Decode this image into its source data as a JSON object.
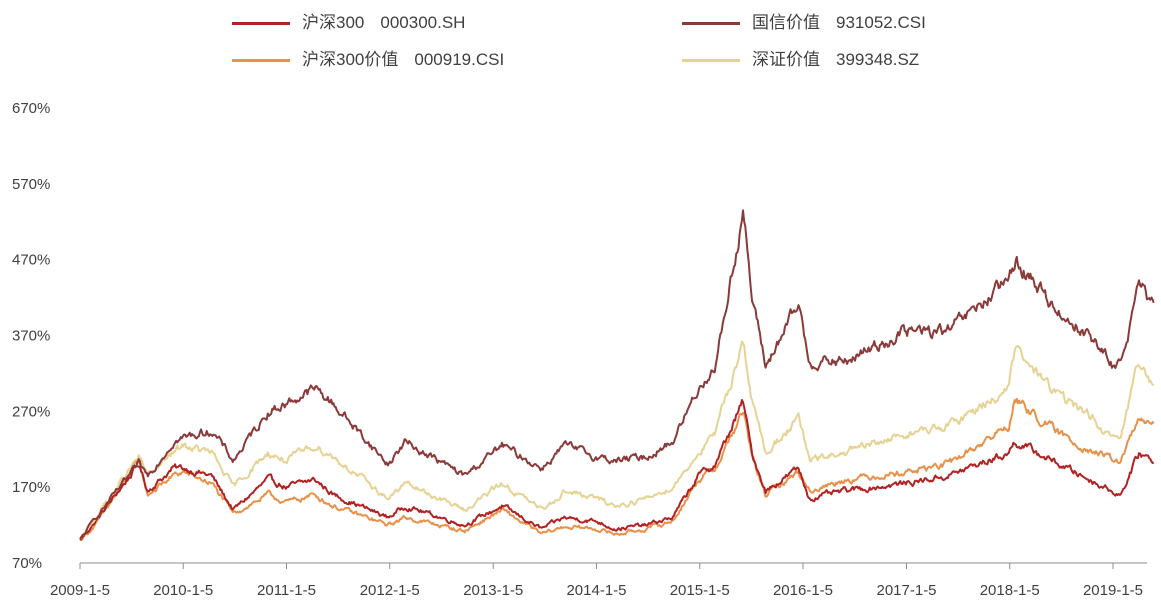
{
  "chart_data": {
    "type": "line",
    "title": "",
    "xlabel": "",
    "ylabel": "",
    "x_start": "2009-01-05",
    "x_end": "2019-05-31",
    "x_ticks": [
      "2009-1-5",
      "2010-1-5",
      "2011-1-5",
      "2012-1-5",
      "2013-1-5",
      "2014-1-5",
      "2015-1-5",
      "2016-1-5",
      "2017-1-5",
      "2018-1-5",
      "2019-1-5"
    ],
    "y_ticks": [
      "70%",
      "170%",
      "270%",
      "370%",
      "470%",
      "570%",
      "670%"
    ],
    "ylim": [
      70,
      670
    ],
    "grid": false,
    "legend_position": "top",
    "series": [
      {
        "name": "沪深300",
        "code": "000300.SH",
        "color": "#B22222",
        "points": [
          [
            "2009-01-05",
            100
          ],
          [
            "2009-03-01",
            125
          ],
          [
            "2009-08-01",
            200
          ],
          [
            "2009-09-01",
            165
          ],
          [
            "2009-12-01",
            195
          ],
          [
            "2010-01-05",
            195
          ],
          [
            "2010-04-15",
            185
          ],
          [
            "2010-07-01",
            140
          ],
          [
            "2010-11-01",
            180
          ],
          [
            "2011-01-05",
            170
          ],
          [
            "2011-04-15",
            180
          ],
          [
            "2011-06-20",
            160
          ],
          [
            "2011-12-30",
            130
          ],
          [
            "2012-03-01",
            145
          ],
          [
            "2012-09-25",
            120
          ],
          [
            "2013-02-05",
            145
          ],
          [
            "2013-06-25",
            115
          ],
          [
            "2013-09-15",
            130
          ],
          [
            "2014-01-05",
            125
          ],
          [
            "2014-03-15",
            115
          ],
          [
            "2014-07-01",
            120
          ],
          [
            "2014-10-01",
            130
          ],
          [
            "2014-12-31",
            185
          ],
          [
            "2015-03-01",
            200
          ],
          [
            "2015-06-08",
            283
          ],
          [
            "2015-07-08",
            215
          ],
          [
            "2015-08-26",
            165
          ],
          [
            "2015-12-20",
            195
          ],
          [
            "2016-01-28",
            155
          ],
          [
            "2016-06-01",
            165
          ],
          [
            "2016-12-31",
            175
          ],
          [
            "2017-06-01",
            185
          ],
          [
            "2017-12-31",
            215
          ],
          [
            "2018-01-24",
            230
          ],
          [
            "2018-06-30",
            200
          ],
          [
            "2018-10-15",
            180
          ],
          [
            "2019-01-03",
            165
          ],
          [
            "2019-02-01",
            160
          ],
          [
            "2019-04-08",
            215
          ],
          [
            "2019-05-31",
            205
          ]
        ]
      },
      {
        "name": "沪深300价值",
        "code": "000919.CSI",
        "color": "#E8914A",
        "points": [
          [
            "2009-01-05",
            100
          ],
          [
            "2009-03-01",
            120
          ],
          [
            "2009-08-01",
            205
          ],
          [
            "2009-09-01",
            160
          ],
          [
            "2009-12-01",
            185
          ],
          [
            "2010-01-05",
            190
          ],
          [
            "2010-04-15",
            175
          ],
          [
            "2010-07-01",
            135
          ],
          [
            "2010-11-01",
            160
          ],
          [
            "2011-01-05",
            150
          ],
          [
            "2011-04-15",
            160
          ],
          [
            "2011-06-20",
            145
          ],
          [
            "2011-12-30",
            120
          ],
          [
            "2012-03-01",
            130
          ],
          [
            "2012-09-25",
            112
          ],
          [
            "2013-02-05",
            140
          ],
          [
            "2013-06-25",
            108
          ],
          [
            "2013-09-15",
            118
          ],
          [
            "2014-01-05",
            115
          ],
          [
            "2014-03-15",
            108
          ],
          [
            "2014-07-01",
            115
          ],
          [
            "2014-10-01",
            125
          ],
          [
            "2014-12-31",
            180
          ],
          [
            "2015-03-01",
            195
          ],
          [
            "2015-06-08",
            270
          ],
          [
            "2015-07-08",
            210
          ],
          [
            "2015-08-26",
            160
          ],
          [
            "2015-12-20",
            190
          ],
          [
            "2016-01-28",
            165
          ],
          [
            "2016-06-01",
            180
          ],
          [
            "2016-12-31",
            190
          ],
          [
            "2017-06-01",
            200
          ],
          [
            "2017-12-31",
            250
          ],
          [
            "2018-01-24",
            285
          ],
          [
            "2018-06-30",
            240
          ],
          [
            "2018-10-15",
            220
          ],
          [
            "2019-01-03",
            205
          ],
          [
            "2019-02-01",
            205
          ],
          [
            "2019-04-08",
            260
          ],
          [
            "2019-05-31",
            250
          ]
        ]
      },
      {
        "name": "国信价值",
        "code": "931052.CSI",
        "color": "#8B3A3A",
        "points": [
          [
            "2009-01-05",
            100
          ],
          [
            "2009-03-01",
            130
          ],
          [
            "2009-08-01",
            200
          ],
          [
            "2009-09-01",
            185
          ],
          [
            "2009-12-01",
            230
          ],
          [
            "2010-01-05",
            235
          ],
          [
            "2010-04-15",
            245
          ],
          [
            "2010-07-01",
            205
          ],
          [
            "2010-11-01",
            270
          ],
          [
            "2011-01-05",
            280
          ],
          [
            "2011-04-15",
            300
          ],
          [
            "2011-06-20",
            280
          ],
          [
            "2011-12-30",
            200
          ],
          [
            "2012-03-01",
            230
          ],
          [
            "2012-09-25",
            185
          ],
          [
            "2013-02-05",
            225
          ],
          [
            "2013-06-25",
            195
          ],
          [
            "2013-09-15",
            225
          ],
          [
            "2014-01-05",
            210
          ],
          [
            "2014-03-15",
            205
          ],
          [
            "2014-07-01",
            210
          ],
          [
            "2014-10-01",
            230
          ],
          [
            "2014-12-31",
            300
          ],
          [
            "2015-03-01",
            330
          ],
          [
            "2015-06-08",
            535
          ],
          [
            "2015-07-08",
            420
          ],
          [
            "2015-08-26",
            330
          ],
          [
            "2015-12-20",
            410
          ],
          [
            "2016-01-28",
            335
          ],
          [
            "2016-06-01",
            335
          ],
          [
            "2016-12-31",
            375
          ],
          [
            "2017-06-01",
            375
          ],
          [
            "2017-12-31",
            440
          ],
          [
            "2018-01-24",
            470
          ],
          [
            "2018-06-30",
            400
          ],
          [
            "2018-10-15",
            370
          ],
          [
            "2019-01-03",
            330
          ],
          [
            "2019-02-01",
            335
          ],
          [
            "2019-04-08",
            435
          ],
          [
            "2019-05-31",
            405
          ]
        ]
      },
      {
        "name": "深证价值",
        "code": "399348.SZ",
        "color": "#E6D394",
        "points": [
          [
            "2009-01-05",
            100
          ],
          [
            "2009-03-01",
            130
          ],
          [
            "2009-08-01",
            210
          ],
          [
            "2009-09-01",
            185
          ],
          [
            "2009-12-01",
            215
          ],
          [
            "2010-01-05",
            225
          ],
          [
            "2010-04-15",
            215
          ],
          [
            "2010-07-01",
            170
          ],
          [
            "2010-11-01",
            215
          ],
          [
            "2011-01-05",
            205
          ],
          [
            "2011-04-15",
            225
          ],
          [
            "2011-06-20",
            210
          ],
          [
            "2011-12-30",
            155
          ],
          [
            "2012-03-01",
            175
          ],
          [
            "2012-09-25",
            140
          ],
          [
            "2013-02-05",
            175
          ],
          [
            "2013-06-25",
            140
          ],
          [
            "2013-09-15",
            165
          ],
          [
            "2014-01-05",
            155
          ],
          [
            "2014-03-15",
            145
          ],
          [
            "2014-07-01",
            155
          ],
          [
            "2014-10-01",
            170
          ],
          [
            "2014-12-31",
            215
          ],
          [
            "2015-03-01",
            240
          ],
          [
            "2015-06-08",
            365
          ],
          [
            "2015-07-08",
            285
          ],
          [
            "2015-08-26",
            215
          ],
          [
            "2015-12-20",
            260
          ],
          [
            "2016-01-28",
            205
          ],
          [
            "2016-06-01",
            215
          ],
          [
            "2016-12-31",
            240
          ],
          [
            "2017-06-01",
            250
          ],
          [
            "2017-12-31",
            300
          ],
          [
            "2018-01-24",
            350
          ],
          [
            "2018-06-30",
            290
          ],
          [
            "2018-10-15",
            265
          ],
          [
            "2019-01-03",
            230
          ],
          [
            "2019-02-01",
            235
          ],
          [
            "2019-04-08",
            335
          ],
          [
            "2019-05-31",
            305
          ]
        ]
      }
    ]
  }
}
